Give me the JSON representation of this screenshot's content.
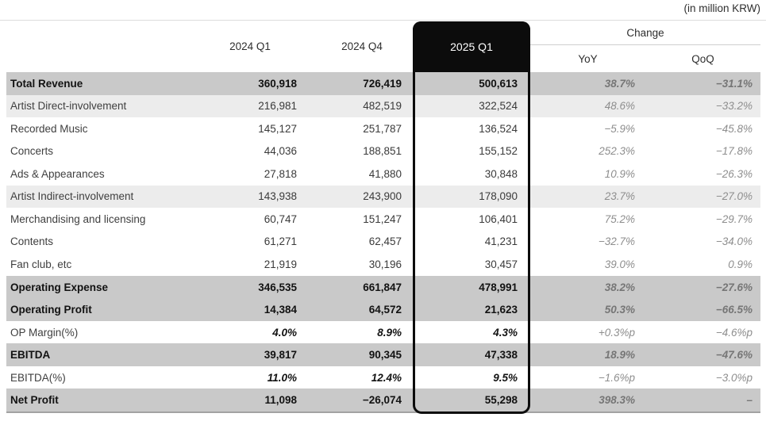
{
  "meta": {
    "unit_note": "(in million KRW)"
  },
  "table": {
    "columns": {
      "q1_2024": "2024 Q1",
      "q4_2024": "2024 Q4",
      "q1_2025": "2025 Q1",
      "change_group": "Change",
      "yoy": "YoY",
      "qoq": "QoQ"
    },
    "highlighted_column": "2025 Q1",
    "colors": {
      "strong_row_bg": "#c9c9c9",
      "mid_row_bg": "#ececec",
      "highlight_box": "#0c0c0c"
    },
    "rows": [
      {
        "label": "Total Revenue",
        "q1_2024": "360,918",
        "q4_2024": "726,419",
        "q1_2025": "500,613",
        "yoy": "38.7%",
        "qoq": "−31.1%",
        "style": "r-strong"
      },
      {
        "label": "Artist Direct-involvement",
        "q1_2024": "216,981",
        "q4_2024": "482,519",
        "q1_2025": "322,524",
        "yoy": "48.6%",
        "qoq": "−33.2%",
        "style": "r-mid"
      },
      {
        "label": "Recorded Music",
        "q1_2024": "145,127",
        "q4_2024": "251,787",
        "q1_2025": "136,524",
        "yoy": "−5.9%",
        "qoq": "−45.8%",
        "style": "r-plain"
      },
      {
        "label": "Concerts",
        "q1_2024": "44,036",
        "q4_2024": "188,851",
        "q1_2025": "155,152",
        "yoy": "252.3%",
        "qoq": "−17.8%",
        "style": "r-plain"
      },
      {
        "label": "Ads & Appearances",
        "q1_2024": "27,818",
        "q4_2024": "41,880",
        "q1_2025": "30,848",
        "yoy": "10.9%",
        "qoq": "−26.3%",
        "style": "r-plain"
      },
      {
        "label": "Artist Indirect-involvement",
        "q1_2024": "143,938",
        "q4_2024": "243,900",
        "q1_2025": "178,090",
        "yoy": "23.7%",
        "qoq": "−27.0%",
        "style": "r-mid"
      },
      {
        "label": "Merchandising and licensing",
        "q1_2024": "60,747",
        "q4_2024": "151,247",
        "q1_2025": "106,401",
        "yoy": "75.2%",
        "qoq": "−29.7%",
        "style": "r-plain"
      },
      {
        "label": "Contents",
        "q1_2024": "61,271",
        "q4_2024": "62,457",
        "q1_2025": "41,231",
        "yoy": "−32.7%",
        "qoq": "−34.0%",
        "style": "r-plain"
      },
      {
        "label": "Fan club, etc",
        "q1_2024": "21,919",
        "q4_2024": "30,196",
        "q1_2025": "30,457",
        "yoy": "39.0%",
        "qoq": "0.9%",
        "style": "r-plain"
      },
      {
        "label": "Operating Expense",
        "q1_2024": "346,535",
        "q4_2024": "661,847",
        "q1_2025": "478,991",
        "yoy": "38.2%",
        "qoq": "−27.6%",
        "style": "r-strong"
      },
      {
        "label": "Operating Profit",
        "q1_2024": "14,384",
        "q4_2024": "64,572",
        "q1_2025": "21,623",
        "yoy": "50.3%",
        "qoq": "−66.5%",
        "style": "r-strong"
      },
      {
        "label": "OP Margin(%)",
        "q1_2024": "4.0%",
        "q4_2024": "8.9%",
        "q1_2025": "4.3%",
        "yoy": "+0.3%p",
        "qoq": "−4.6%p",
        "style": "r-pct"
      },
      {
        "label": "EBITDA",
        "q1_2024": "39,817",
        "q4_2024": "90,345",
        "q1_2025": "47,338",
        "yoy": "18.9%",
        "qoq": "−47.6%",
        "style": "r-strong"
      },
      {
        "label": "EBITDA(%)",
        "q1_2024": "11.0%",
        "q4_2024": "12.4%",
        "q1_2025": "9.5%",
        "yoy": "−1.6%p",
        "qoq": "−3.0%p",
        "style": "r-pct"
      },
      {
        "label": "Net Profit",
        "q1_2024": "11,098",
        "q4_2024": "−26,074",
        "q1_2025": "55,298",
        "yoy": "398.3%",
        "qoq": "–",
        "style": "r-strong r-last"
      }
    ]
  }
}
